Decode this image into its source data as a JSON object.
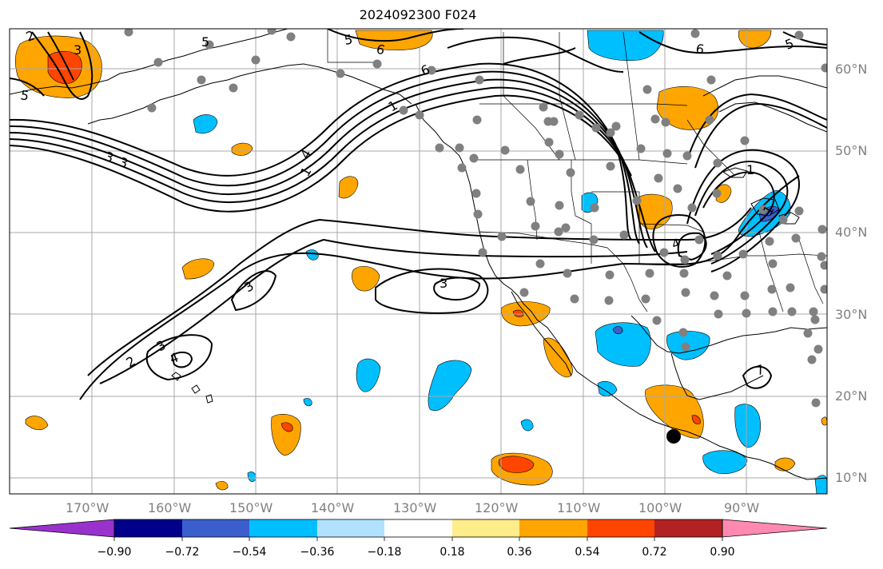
{
  "title": "2024092300 F024",
  "latitude_labels": [
    "60°N",
    "50°N",
    "40°N",
    "30°N",
    "20°N",
    "10°N"
  ],
  "longitude_labels": [
    "170°W",
    "160°W",
    "150°W",
    "140°W",
    "130°W",
    "120°W",
    "110°W",
    "100°W",
    "90°W"
  ],
  "colorbar": {
    "ticks": [
      "−0.90",
      "−0.72",
      "−0.54",
      "−0.36",
      "−0.18",
      "0.18",
      "0.36",
      "0.54",
      "0.72",
      "0.90"
    ],
    "colors": [
      "#9932cc",
      "#00008b",
      "#3a5fcd",
      "#00bfff",
      "#b0e2ff",
      "#ffffff",
      "#ffec8b",
      "#ffa500",
      "#ff4500",
      "#b22222",
      "#ff89b0"
    ]
  },
  "contour_labels": [
    "5",
    "6",
    "6",
    "6",
    "5",
    "5",
    "1",
    "1",
    "3",
    "3",
    "3",
    "3",
    "3",
    "3",
    "4",
    "2",
    "2",
    "4",
    "4",
    "1",
    "7",
    "5",
    "1"
  ],
  "colors": {
    "coast": "#000000",
    "grid": "#a9a9a9",
    "station": "#808080",
    "contour": "#000000"
  }
}
